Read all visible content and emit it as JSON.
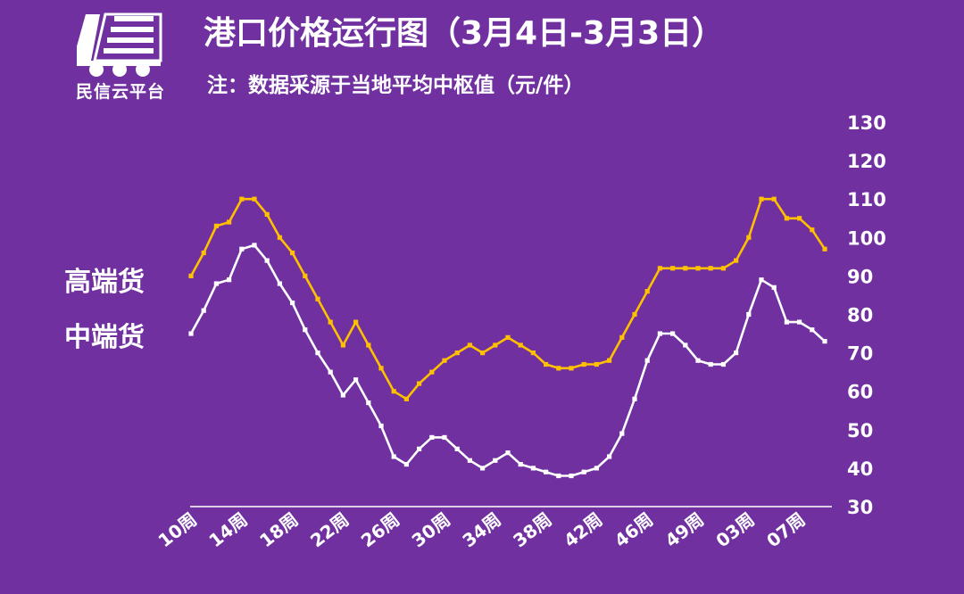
{
  "title": "港口价格运行图（3月4日-3月3日）",
  "subtitle": "注：数据采源于当地平均中枢值（元/件）",
  "logo": {
    "text": "民信云平台"
  },
  "colors": {
    "background": "#7030A0",
    "high": "#FFC000",
    "mid": "#FFFFFF"
  },
  "chart_data": {
    "type": "line",
    "title": "港口价格运行图（3月4日-3月3日）",
    "xlabel": "",
    "ylabel": "",
    "ylim": [
      30,
      130
    ],
    "yticks": [
      30,
      40,
      50,
      60,
      70,
      80,
      90,
      100,
      110,
      120,
      130
    ],
    "xtick_labels": [
      "10周",
      "14周",
      "18周",
      "22周",
      "26周",
      "30周",
      "34周",
      "38周",
      "42周",
      "46周",
      "49周",
      "03周",
      "07周"
    ],
    "grid": false,
    "legend": "left, inline labels",
    "series": [
      {
        "name": "高端货",
        "color": "#FFC000",
        "values": [
          90,
          96,
          103,
          104,
          110,
          110,
          106,
          100,
          96,
          90,
          84,
          78,
          72,
          78,
          72,
          66,
          60,
          58,
          62,
          65,
          68,
          70,
          72,
          70,
          72,
          74,
          72,
          70,
          67,
          66,
          66,
          67,
          67,
          68,
          74,
          80,
          86,
          92,
          92,
          92,
          92,
          92,
          92,
          94,
          100,
          110,
          110,
          105,
          105,
          102,
          97
        ]
      },
      {
        "name": "中端货",
        "color": "#FFFFFF",
        "values": [
          75,
          81,
          88,
          89,
          97,
          98,
          94,
          88,
          83,
          76,
          70,
          65,
          59,
          63,
          57,
          51,
          43,
          41,
          45,
          48,
          48,
          45,
          42,
          40,
          42,
          44,
          41,
          40,
          39,
          38,
          38,
          39,
          40,
          43,
          49,
          58,
          68,
          75,
          75,
          72,
          68,
          67,
          67,
          70,
          80,
          89,
          87,
          78,
          78,
          76,
          73
        ]
      }
    ]
  }
}
